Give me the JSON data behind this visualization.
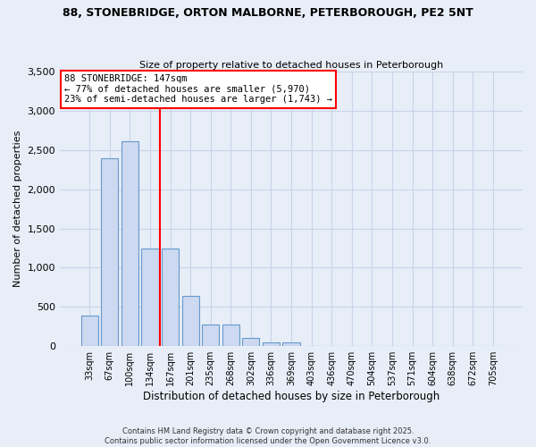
{
  "title1": "88, STONEBRIDGE, ORTON MALBORNE, PETERBOROUGH, PE2 5NT",
  "title2": "Size of property relative to detached houses in Peterborough",
  "xlabel": "Distribution of detached houses by size in Peterborough",
  "ylabel": "Number of detached properties",
  "bar_labels": [
    "33sqm",
    "67sqm",
    "100sqm",
    "134sqm",
    "167sqm",
    "201sqm",
    "235sqm",
    "268sqm",
    "302sqm",
    "336sqm",
    "369sqm",
    "403sqm",
    "436sqm",
    "470sqm",
    "504sqm",
    "537sqm",
    "571sqm",
    "604sqm",
    "638sqm",
    "672sqm",
    "705sqm"
  ],
  "bar_values": [
    390,
    2400,
    2610,
    1250,
    1250,
    640,
    280,
    280,
    100,
    50,
    50,
    0,
    0,
    0,
    0,
    0,
    0,
    0,
    0,
    0,
    0
  ],
  "bar_color": "#ccd9f0",
  "bar_edge_color": "#6699cc",
  "vline_color": "red",
  "vline_pos": 3.5,
  "annotation_title": "88 STONEBRIDGE: 147sqm",
  "annotation_line1": "← 77% of detached houses are smaller (5,970)",
  "annotation_line2": "23% of semi-detached houses are larger (1,743) →",
  "annotation_box_color": "white",
  "annotation_box_edge": "red",
  "ylim": [
    0,
    3500
  ],
  "yticks": [
    0,
    500,
    1000,
    1500,
    2000,
    2500,
    3000,
    3500
  ],
  "footer1": "Contains HM Land Registry data © Crown copyright and database right 2025.",
  "footer2": "Contains public sector information licensed under the Open Government Licence v3.0.",
  "background_color": "#e8eef8",
  "grid_color": "#c8d4e8"
}
